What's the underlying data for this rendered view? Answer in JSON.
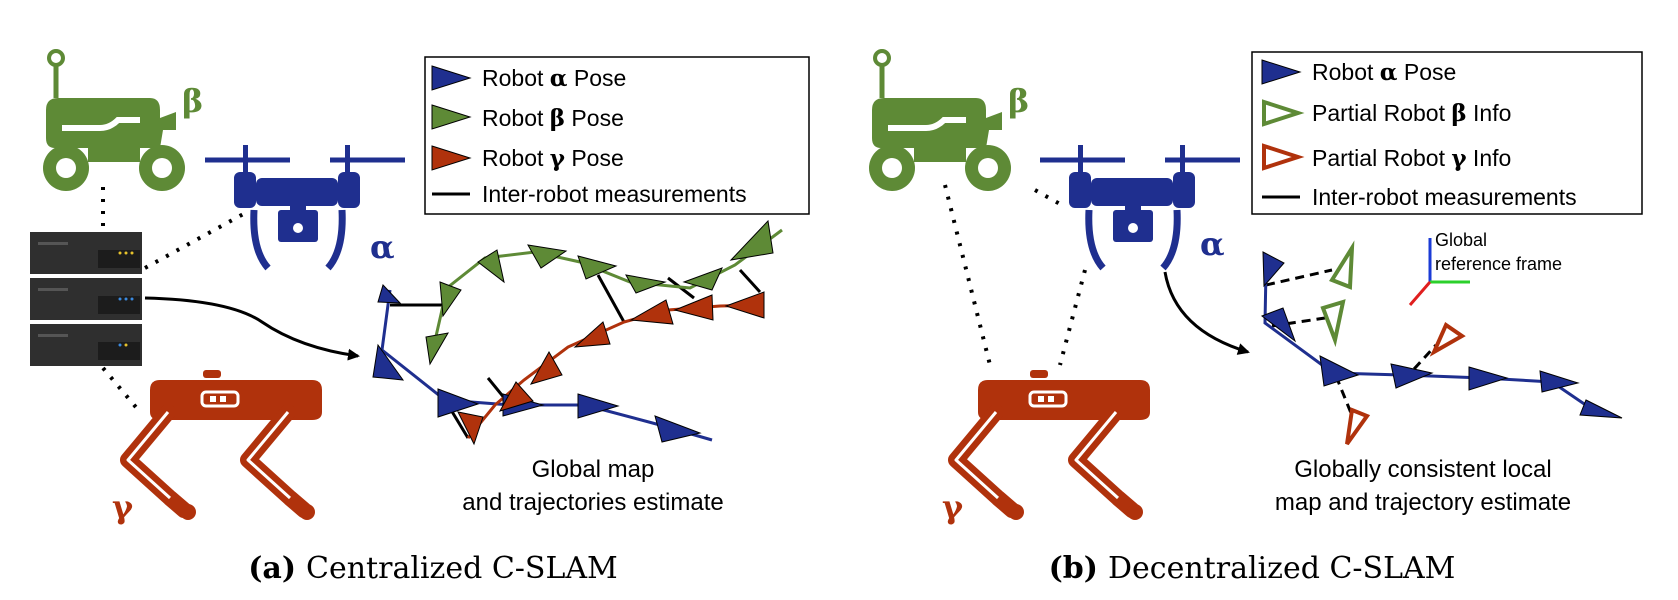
{
  "colors": {
    "alpha": "#1f2f8f",
    "beta": "#5e8a36",
    "gamma": "#b0320c",
    "server": "#2f2f2f",
    "x_axis": "#e01e1e",
    "y_axis": "#2bd02b",
    "z_axis": "#1b3bd6"
  },
  "panel_a": {
    "label_alpha": "α",
    "label_beta": "β",
    "label_gamma": "γ",
    "legend": [
      {
        "prefix": "Robot ",
        "greek": "α",
        "suffix": " Pose",
        "icon": "filled-triangle-alpha"
      },
      {
        "prefix": "Robot ",
        "greek": "β",
        "suffix": " Pose",
        "icon": "filled-triangle-beta"
      },
      {
        "prefix": "Robot ",
        "greek": "γ",
        "suffix": " Pose",
        "icon": "filled-triangle-gamma"
      },
      {
        "prefix": "Inter-robot measurements",
        "greek": "",
        "suffix": "",
        "icon": "black-line"
      }
    ],
    "caption_line1": "Global map",
    "caption_line2": "and trajectories estimate",
    "subcaption_label": "(a)",
    "subcaption_text": "Centralized C-SLAM"
  },
  "panel_b": {
    "label_alpha": "α",
    "label_beta": "β",
    "label_gamma": "γ",
    "legend": [
      {
        "prefix": "Robot ",
        "greek": "α",
        "suffix": " Pose",
        "icon": "filled-triangle-alpha"
      },
      {
        "prefix": "Partial Robot ",
        "greek": "β",
        "suffix": " Info",
        "icon": "hollow-triangle-beta"
      },
      {
        "prefix": "Partial Robot ",
        "greek": "γ",
        "suffix": " Info",
        "icon": "hollow-triangle-gamma"
      },
      {
        "prefix": "Inter-robot measurements",
        "greek": "",
        "suffix": "",
        "icon": "black-line"
      }
    ],
    "frame_label_line1": "Global",
    "frame_label_line2": "reference frame",
    "caption_line1": "Globally consistent local",
    "caption_line2": "map and trajectory estimate",
    "subcaption_label": "(b)",
    "subcaption_text": "Decentralized C-SLAM"
  }
}
